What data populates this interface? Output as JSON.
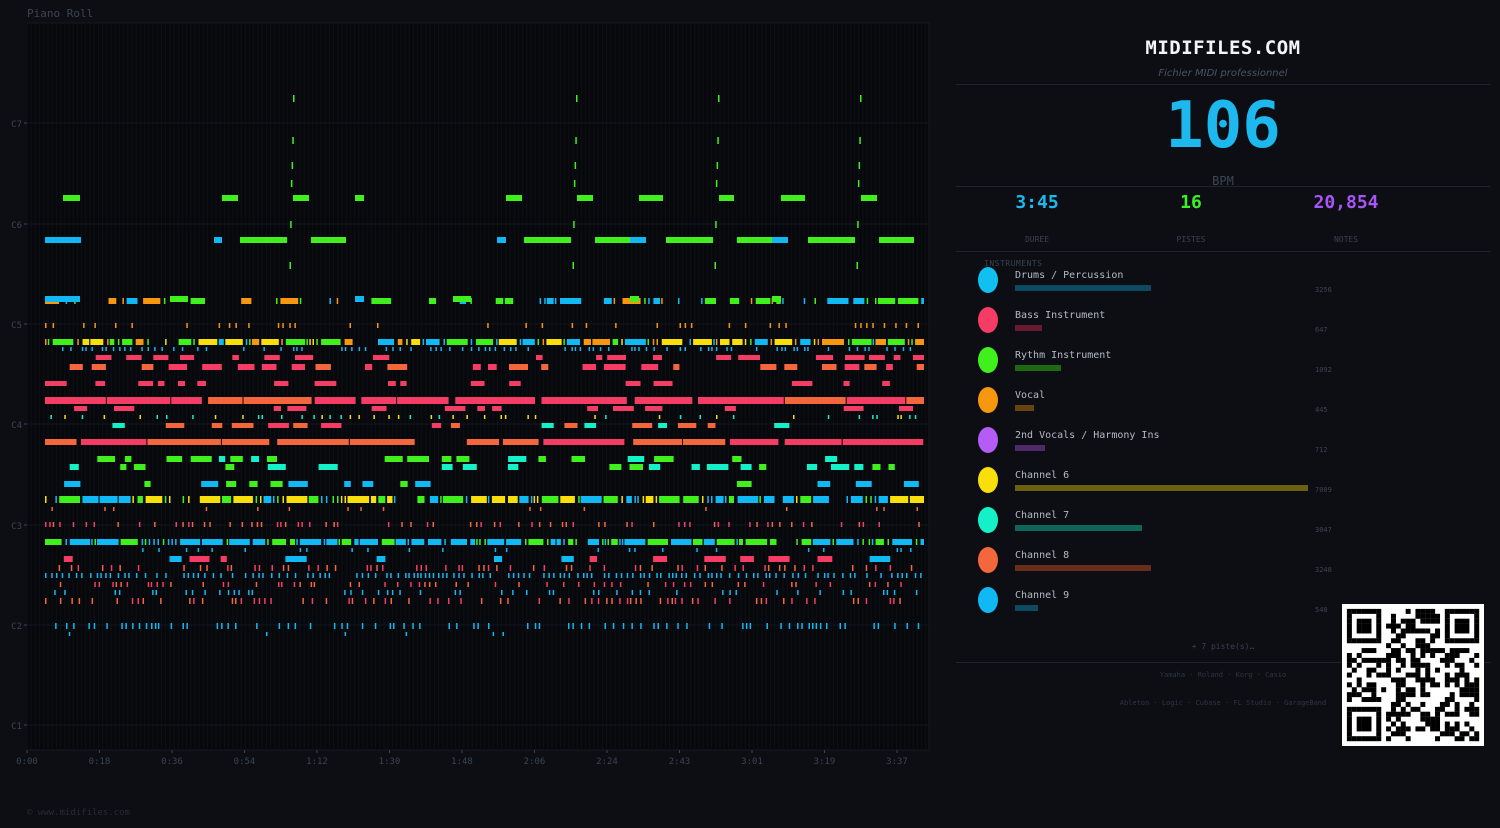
{
  "roll": {
    "title": "Piano Roll",
    "footer": "© www.midifiles.com",
    "octave_labels": [
      "C7",
      "C6",
      "C5",
      "C4",
      "C3",
      "C2",
      "C1"
    ],
    "time_labels": [
      "0:00",
      "0:18",
      "0:36",
      "0:54",
      "1:12",
      "1:30",
      "1:48",
      "2:06",
      "2:24",
      "2:43",
      "3:01",
      "3:19",
      "3:37"
    ]
  },
  "panel": {
    "brand": "MIDIFILES.COM",
    "tagline": "Fichier MIDI professionnel",
    "bpm": "106",
    "bpm_label": "BPM",
    "stats": [
      {
        "value": "3:45",
        "label": "DUREE",
        "color": "#1cb8ee"
      },
      {
        "value": "16",
        "label": "PISTES",
        "color": "#3cf028"
      },
      {
        "value": "20,854",
        "label": "NOTES",
        "color": "#a855f7"
      }
    ],
    "instruments_header": "INSTRUMENTS",
    "instruments": [
      {
        "name": "Drums / Percussion",
        "count": "3256",
        "color": "#10c0f0",
        "bar_color": "#0b4a60",
        "bar_fraction": 0.465
      },
      {
        "name": "Bass Instrument",
        "count": "647",
        "color": "#f43c64",
        "bar_color": "#6a1a30",
        "bar_fraction": 0.092
      },
      {
        "name": "Rythm Instrument",
        "count": "1092",
        "color": "#40f01c",
        "bar_color": "#1e6a12",
        "bar_fraction": 0.156
      },
      {
        "name": "Vocal",
        "count": "445",
        "color": "#f7960f",
        "bar_color": "#6a4410",
        "bar_fraction": 0.064
      },
      {
        "name": "2nd Vocals / Harmony Ins",
        "count": "712",
        "color": "#b45cf5",
        "bar_color": "#4e2a6a",
        "bar_fraction": 0.102
      },
      {
        "name": "Channel 6",
        "count": "7009",
        "color": "#f9df0a",
        "bar_color": "#6a600e",
        "bar_fraction": 1.0
      },
      {
        "name": "Channel 7",
        "count": "3047",
        "color": "#14f0c8",
        "bar_color": "#0e6658",
        "bar_fraction": 0.435
      },
      {
        "name": "Channel 8",
        "count": "3248",
        "color": "#f4663c",
        "bar_color": "#6a2c1c",
        "bar_fraction": 0.463
      },
      {
        "name": "Channel 9",
        "count": "540",
        "color": "#10b8f4",
        "bar_color": "#0b4a60",
        "bar_fraction": 0.077
      }
    ],
    "more_tracks": "+ 7 piste(s)…",
    "brands_hardware": "Yamaha · Roland · Korg · Casio",
    "brands_software": "Ableton · Logic · Cubase · FL Studio · GarageBand"
  }
}
